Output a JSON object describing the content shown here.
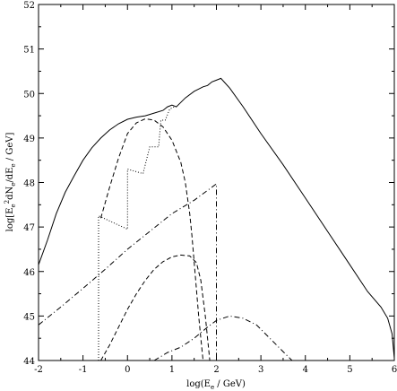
{
  "chart_data": {
    "type": "line",
    "xlabel_main": "log(E",
    "xlabel_sub": "e",
    "xlabel_tail": " / GeV)",
    "ylabel_main": "log[E",
    "ylabel_sub1": "e",
    "ylabel_sup": "2",
    "ylabel_mid": "dN",
    "ylabel_sub2": "e",
    "ylabel_mid2": "/dE",
    "ylabel_sub3": "e",
    "ylabel_tail": " / GeV]",
    "xlim": [
      -2,
      6
    ],
    "ylim": [
      44,
      52
    ],
    "xticks": [
      -2,
      -1,
      0,
      1,
      2,
      3,
      4,
      5,
      6
    ],
    "xtick_labels": [
      "-2",
      "-1",
      "0",
      "1",
      "2",
      "3",
      "4",
      "5",
      "6"
    ],
    "yticks": [
      44,
      45,
      46,
      47,
      48,
      49,
      50,
      51,
      52
    ],
    "ytick_labels": [
      "44",
      "45",
      "46",
      "47",
      "48",
      "49",
      "50",
      "51",
      "52"
    ],
    "grid": false,
    "series": [
      {
        "style": "solid",
        "points": [
          [
            -2.0,
            46.15
          ],
          [
            -1.8,
            46.7
          ],
          [
            -1.6,
            47.3
          ],
          [
            -1.4,
            47.78
          ],
          [
            -1.2,
            48.15
          ],
          [
            -1.0,
            48.5
          ],
          [
            -0.8,
            48.78
          ],
          [
            -0.6,
            49.0
          ],
          [
            -0.4,
            49.18
          ],
          [
            -0.2,
            49.32
          ],
          [
            0.0,
            49.42
          ],
          [
            0.2,
            49.47
          ],
          [
            0.4,
            49.5
          ],
          [
            0.5,
            49.53
          ],
          [
            0.6,
            49.56
          ],
          [
            0.8,
            49.62
          ],
          [
            0.9,
            49.7
          ],
          [
            1.0,
            49.74
          ],
          [
            1.1,
            49.7
          ],
          [
            1.3,
            49.9
          ],
          [
            1.5,
            50.05
          ],
          [
            1.7,
            50.15
          ],
          [
            1.8,
            50.18
          ],
          [
            1.9,
            50.26
          ],
          [
            2.0,
            50.3
          ],
          [
            2.1,
            50.34
          ],
          [
            2.3,
            50.12
          ],
          [
            2.6,
            49.7
          ],
          [
            3.0,
            49.1
          ],
          [
            3.5,
            48.4
          ],
          [
            4.0,
            47.65
          ],
          [
            4.5,
            46.9
          ],
          [
            5.0,
            46.15
          ],
          [
            5.4,
            45.55
          ],
          [
            5.7,
            45.2
          ],
          [
            5.85,
            44.95
          ],
          [
            5.95,
            44.6
          ],
          [
            6.0,
            44.05
          ]
        ]
      },
      {
        "style": "dashed",
        "points": [
          [
            -0.6,
            47.2
          ],
          [
            -0.4,
            47.9
          ],
          [
            -0.2,
            48.55
          ],
          [
            0.0,
            49.1
          ],
          [
            0.2,
            49.34
          ],
          [
            0.4,
            49.43
          ],
          [
            0.6,
            49.4
          ],
          [
            0.8,
            49.25
          ],
          [
            1.0,
            48.95
          ],
          [
            1.2,
            48.45
          ],
          [
            1.3,
            48.0
          ],
          [
            1.4,
            47.3
          ],
          [
            1.45,
            46.8
          ],
          [
            1.5,
            46.2
          ],
          [
            1.55,
            45.6
          ],
          [
            1.6,
            45.0
          ],
          [
            1.65,
            44.5
          ],
          [
            1.7,
            44.0
          ]
        ]
      },
      {
        "style": "dashdot",
        "points": [
          [
            -2.0,
            44.8
          ],
          [
            -1.5,
            45.2
          ],
          [
            -1.0,
            45.62
          ],
          [
            -0.5,
            46.05
          ],
          [
            0.0,
            46.5
          ],
          [
            0.5,
            46.9
          ],
          [
            1.0,
            47.3
          ],
          [
            1.5,
            47.6
          ],
          [
            2.0,
            47.97
          ],
          [
            2.0,
            44.0
          ]
        ]
      },
      {
        "style": "dotted",
        "points": [
          [
            -0.65,
            44.0
          ],
          [
            -0.65,
            47.25
          ],
          [
            0.0,
            46.95
          ],
          [
            0.0,
            48.3
          ],
          [
            0.35,
            48.2
          ],
          [
            0.5,
            48.8
          ],
          [
            0.7,
            48.8
          ],
          [
            0.75,
            49.4
          ],
          [
            0.85,
            49.4
          ],
          [
            0.95,
            49.65
          ],
          [
            1.05,
            49.7
          ],
          [
            1.1,
            49.7
          ]
        ]
      },
      {
        "style": "dashed",
        "points": [
          [
            -0.6,
            44.0
          ],
          [
            -0.4,
            44.35
          ],
          [
            -0.2,
            44.75
          ],
          [
            0.0,
            45.15
          ],
          [
            0.2,
            45.5
          ],
          [
            0.4,
            45.8
          ],
          [
            0.6,
            46.05
          ],
          [
            0.8,
            46.22
          ],
          [
            1.0,
            46.33
          ],
          [
            1.2,
            46.37
          ],
          [
            1.4,
            46.35
          ],
          [
            1.55,
            46.2
          ],
          [
            1.65,
            45.8
          ],
          [
            1.75,
            45.0
          ],
          [
            1.82,
            44.3
          ],
          [
            1.85,
            44.0
          ]
        ]
      },
      {
        "style": "dashdot",
        "points": [
          [
            0.6,
            44.0
          ],
          [
            0.9,
            44.18
          ],
          [
            1.2,
            44.3
          ],
          [
            1.5,
            44.5
          ],
          [
            1.8,
            44.75
          ],
          [
            2.0,
            44.9
          ],
          [
            2.3,
            45.0
          ],
          [
            2.6,
            44.95
          ],
          [
            2.9,
            44.8
          ],
          [
            3.2,
            44.5
          ],
          [
            3.5,
            44.2
          ],
          [
            3.7,
            44.0
          ]
        ]
      }
    ]
  }
}
